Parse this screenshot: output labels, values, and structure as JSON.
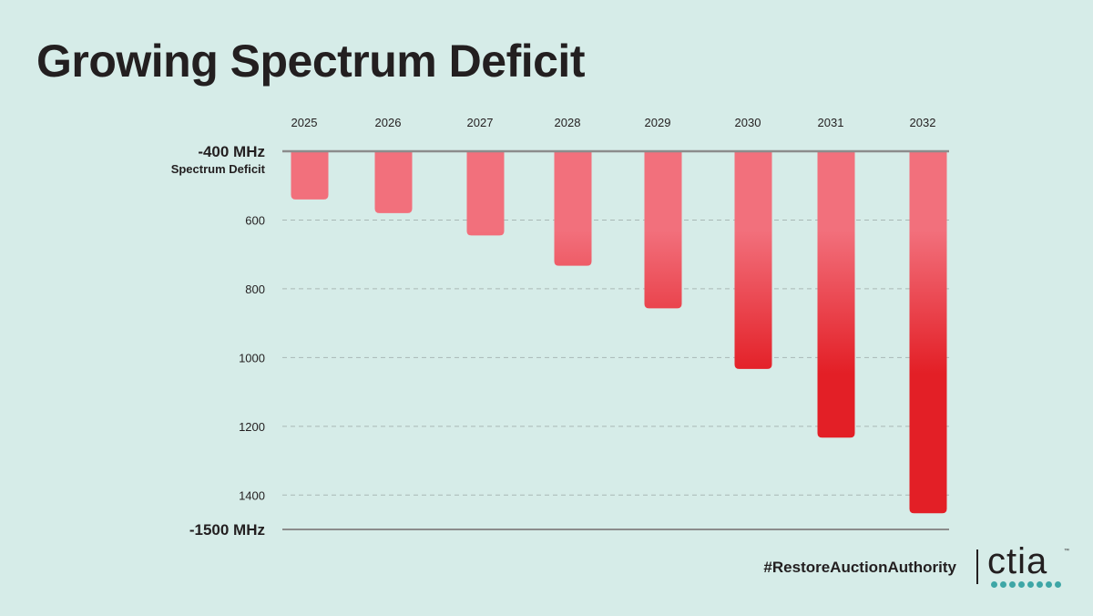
{
  "chart_data": {
    "type": "bar",
    "title": "Growing Spectrum Deficit",
    "categories": [
      "2025",
      "2026",
      "2027",
      "2028",
      "2029",
      "2030",
      "2031",
      "2032"
    ],
    "values": [
      540,
      580,
      645,
      733,
      857,
      1033,
      1233,
      1453
    ],
    "ylim": [
      400,
      1500
    ],
    "y_ticks": [
      600,
      800,
      1000,
      1200,
      1400
    ],
    "y_top_label": "-400 MHz",
    "y_top_sublabel": "Spectrum Deficit",
    "y_bottom_label": "-1500 MHz",
    "grid": true,
    "colors": {
      "bar_top": "#f2707c",
      "bar_bottom": "#e31f26",
      "axis": "#8c8c8c",
      "grid": "#a9b8b5"
    }
  },
  "footer": {
    "hashtag": "#RestoreAuctionAuthority",
    "logo": "ctia",
    "logo_tm": "™"
  },
  "logo_dots": 8
}
